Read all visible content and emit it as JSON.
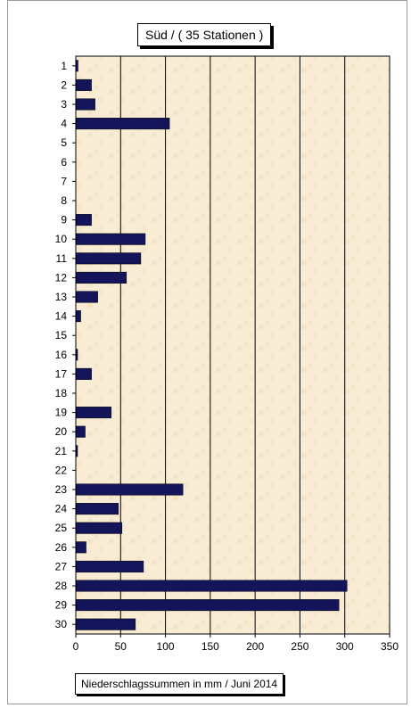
{
  "chart_data": {
    "type": "bar",
    "orientation": "horizontal",
    "title": "Süd  /  ( 35 Stationen )",
    "xlabel": "Niederschlagssummen in mm / Juni 2014",
    "ylabel": "",
    "categories": [
      "1",
      "2",
      "3",
      "4",
      "5",
      "6",
      "7",
      "8",
      "9",
      "10",
      "11",
      "12",
      "13",
      "14",
      "15",
      "16",
      "17",
      "18",
      "19",
      "20",
      "21",
      "22",
      "23",
      "24",
      "25",
      "26",
      "27",
      "28",
      "29",
      "30"
    ],
    "values": [
      2,
      17,
      21,
      104,
      0,
      0,
      0,
      0,
      17,
      77,
      72,
      56,
      24,
      5,
      0,
      1,
      17,
      0,
      39,
      10,
      1,
      0,
      119,
      47,
      51,
      11,
      75,
      302,
      293,
      66
    ],
    "xlim": [
      0,
      350
    ],
    "xticks": [
      0,
      50,
      100,
      150,
      200,
      250,
      300,
      350
    ],
    "grid": "vertical",
    "bar_color": "#14145a",
    "plot_background": "#f8ecd4"
  }
}
